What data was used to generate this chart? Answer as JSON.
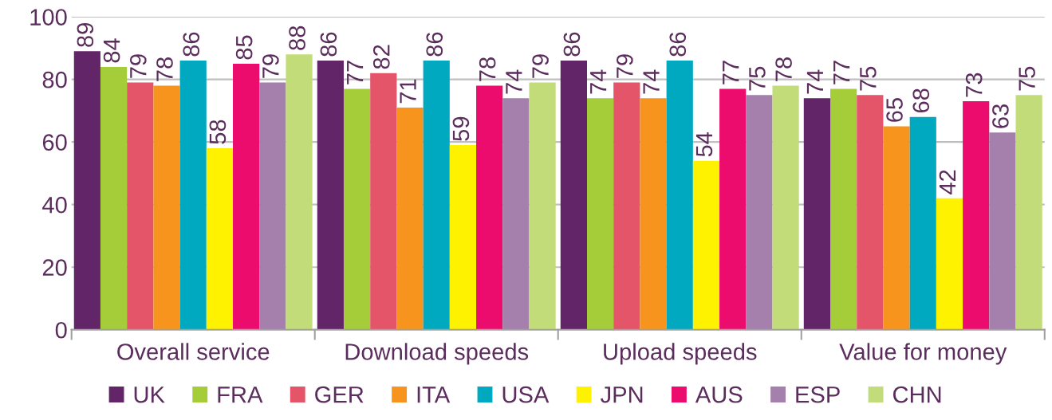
{
  "chart_data": {
    "type": "bar",
    "categories": [
      "Overall service",
      "Download speeds",
      "Upload speeds",
      "Value for money"
    ],
    "series": [
      {
        "name": "UK",
        "color": "#622567",
        "values": [
          89,
          86,
          86,
          74
        ]
      },
      {
        "name": "FRA",
        "color": "#a5cd39",
        "values": [
          84,
          77,
          74,
          77
        ]
      },
      {
        "name": "GER",
        "color": "#e5556a",
        "values": [
          79,
          82,
          79,
          75
        ]
      },
      {
        "name": "ITA",
        "color": "#f7941d",
        "values": [
          78,
          71,
          74,
          65
        ]
      },
      {
        "name": "USA",
        "color": "#00a9c0",
        "values": [
          86,
          86,
          86,
          68
        ]
      },
      {
        "name": "JPN",
        "color": "#fff200",
        "values": [
          58,
          59,
          54,
          42
        ]
      },
      {
        "name": "AUS",
        "color": "#ec0c6e",
        "values": [
          85,
          78,
          77,
          73
        ]
      },
      {
        "name": "ESP",
        "color": "#a680ac",
        "values": [
          79,
          74,
          75,
          63
        ]
      },
      {
        "name": "CHN",
        "color": "#c2dc7a",
        "values": [
          88,
          79,
          78,
          75
        ]
      }
    ],
    "ylim": [
      0,
      100
    ],
    "yticks": [
      0,
      20,
      40,
      60,
      80,
      100
    ],
    "grid": "y",
    "legend": "bottom",
    "data_labels": true
  }
}
